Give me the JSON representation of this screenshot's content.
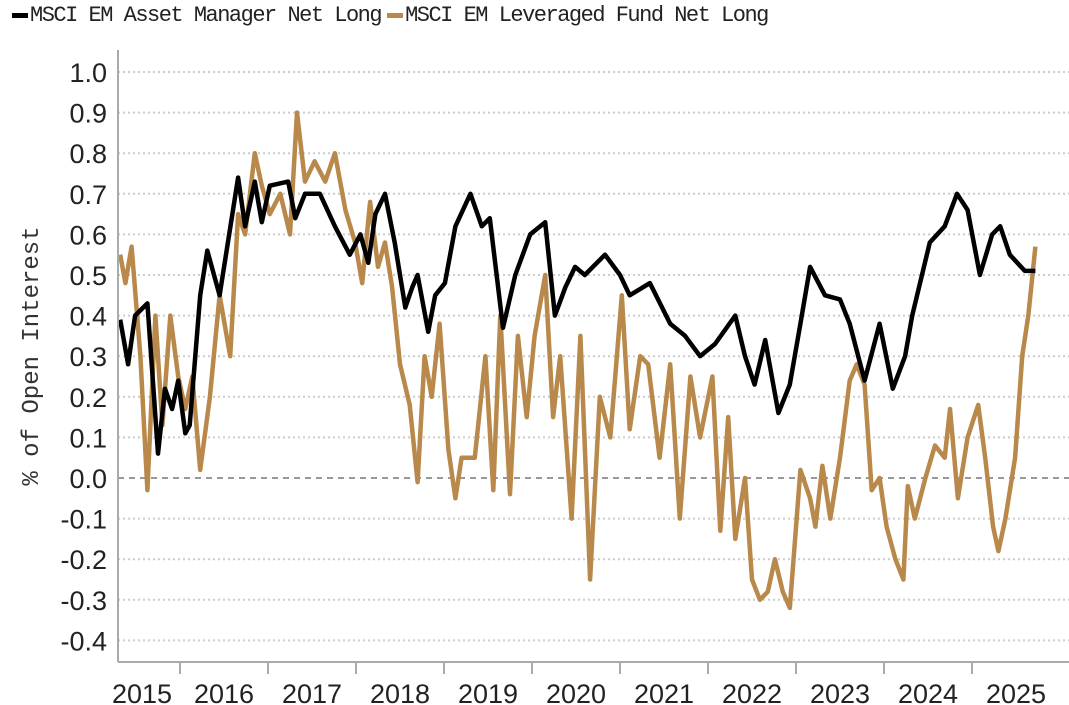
{
  "chart_data": {
    "type": "line",
    "title": "",
    "xlabel": "",
    "ylabel": "% of Open Interest",
    "ylim": [
      -0.4,
      1.0
    ],
    "yticks": [
      "1.0",
      "0.9",
      "0.8",
      "0.7",
      "0.6",
      "0.5",
      "0.4",
      "0.3",
      "0.2",
      "0.1",
      "0.0",
      "-0.1",
      "-0.2",
      "-0.3",
      "-0.4"
    ],
    "ytick_values": [
      1.0,
      0.9,
      0.8,
      0.7,
      0.6,
      0.5,
      0.4,
      0.3,
      0.2,
      0.1,
      0.0,
      -0.1,
      -0.2,
      -0.3,
      -0.4
    ],
    "xticks": [
      "2015",
      "2016",
      "2017",
      "2018",
      "2019",
      "2020",
      "2021",
      "2022",
      "2023",
      "2024",
      "2025"
    ],
    "xlim": [
      2015.3,
      2026.0
    ],
    "grid": true,
    "legend_placement": "top-left",
    "series": [
      {
        "name": "MSCI EM Asset Manager Net Long",
        "color": "#000000",
        "points": [
          [
            2015.32,
            0.39
          ],
          [
            2015.41,
            0.28
          ],
          [
            2015.49,
            0.4
          ],
          [
            2015.63,
            0.43
          ],
          [
            2015.75,
            0.06
          ],
          [
            2015.83,
            0.22
          ],
          [
            2015.91,
            0.17
          ],
          [
            2015.98,
            0.24
          ],
          [
            2016.06,
            0.11
          ],
          [
            2016.11,
            0.13
          ],
          [
            2016.23,
            0.45
          ],
          [
            2016.31,
            0.56
          ],
          [
            2016.45,
            0.45
          ],
          [
            2016.66,
            0.74
          ],
          [
            2016.74,
            0.62
          ],
          [
            2016.85,
            0.73
          ],
          [
            2016.93,
            0.63
          ],
          [
            2017.02,
            0.72
          ],
          [
            2017.23,
            0.73
          ],
          [
            2017.31,
            0.64
          ],
          [
            2017.42,
            0.7
          ],
          [
            2017.59,
            0.7
          ],
          [
            2017.76,
            0.62
          ],
          [
            2017.93,
            0.55
          ],
          [
            2018.05,
            0.6
          ],
          [
            2018.14,
            0.53
          ],
          [
            2018.22,
            0.65
          ],
          [
            2018.33,
            0.7
          ],
          [
            2018.44,
            0.58
          ],
          [
            2018.56,
            0.42
          ],
          [
            2018.64,
            0.47
          ],
          [
            2018.7,
            0.5
          ],
          [
            2018.82,
            0.36
          ],
          [
            2018.9,
            0.45
          ],
          [
            2019.01,
            0.48
          ],
          [
            2019.13,
            0.62
          ],
          [
            2019.3,
            0.7
          ],
          [
            2019.43,
            0.62
          ],
          [
            2019.52,
            0.64
          ],
          [
            2019.67,
            0.37
          ],
          [
            2019.81,
            0.5
          ],
          [
            2019.98,
            0.6
          ],
          [
            2020.15,
            0.63
          ],
          [
            2020.26,
            0.4
          ],
          [
            2020.38,
            0.47
          ],
          [
            2020.49,
            0.52
          ],
          [
            2020.6,
            0.5
          ],
          [
            2020.83,
            0.55
          ],
          [
            2021.0,
            0.5
          ],
          [
            2021.11,
            0.45
          ],
          [
            2021.34,
            0.48
          ],
          [
            2021.57,
            0.38
          ],
          [
            2021.74,
            0.35
          ],
          [
            2021.91,
            0.3
          ],
          [
            2022.08,
            0.33
          ],
          [
            2022.31,
            0.4
          ],
          [
            2022.42,
            0.3
          ],
          [
            2022.53,
            0.23
          ],
          [
            2022.65,
            0.34
          ],
          [
            2022.8,
            0.16
          ],
          [
            2022.93,
            0.23
          ],
          [
            2023.05,
            0.38
          ],
          [
            2023.16,
            0.52
          ],
          [
            2023.33,
            0.45
          ],
          [
            2023.5,
            0.44
          ],
          [
            2023.61,
            0.38
          ],
          [
            2023.78,
            0.24
          ],
          [
            2023.95,
            0.38
          ],
          [
            2024.1,
            0.22
          ],
          [
            2024.24,
            0.3
          ],
          [
            2024.32,
            0.4
          ],
          [
            2024.52,
            0.58
          ],
          [
            2024.69,
            0.62
          ],
          [
            2024.83,
            0.7
          ],
          [
            2024.95,
            0.66
          ],
          [
            2025.09,
            0.5
          ],
          [
            2025.23,
            0.6
          ],
          [
            2025.32,
            0.62
          ],
          [
            2025.43,
            0.55
          ],
          [
            2025.6,
            0.51
          ],
          [
            2025.72,
            0.51
          ]
        ]
      },
      {
        "name": "MSCI EM Leveraged Fund Net Long",
        "color": "#b8894a",
        "points": [
          [
            2015.32,
            0.55
          ],
          [
            2015.38,
            0.48
          ],
          [
            2015.45,
            0.57
          ],
          [
            2015.55,
            0.3
          ],
          [
            2015.63,
            -0.03
          ],
          [
            2015.72,
            0.4
          ],
          [
            2015.8,
            0.13
          ],
          [
            2015.89,
            0.4
          ],
          [
            2015.98,
            0.25
          ],
          [
            2016.06,
            0.17
          ],
          [
            2016.14,
            0.25
          ],
          [
            2016.23,
            0.02
          ],
          [
            2016.34,
            0.2
          ],
          [
            2016.45,
            0.45
          ],
          [
            2016.57,
            0.3
          ],
          [
            2016.66,
            0.65
          ],
          [
            2016.74,
            0.6
          ],
          [
            2016.85,
            0.8
          ],
          [
            2016.93,
            0.72
          ],
          [
            2017.02,
            0.65
          ],
          [
            2017.14,
            0.7
          ],
          [
            2017.25,
            0.6
          ],
          [
            2017.33,
            0.9
          ],
          [
            2017.42,
            0.73
          ],
          [
            2017.53,
            0.78
          ],
          [
            2017.65,
            0.73
          ],
          [
            2017.76,
            0.8
          ],
          [
            2017.88,
            0.66
          ],
          [
            2017.99,
            0.58
          ],
          [
            2018.07,
            0.48
          ],
          [
            2018.16,
            0.68
          ],
          [
            2018.25,
            0.52
          ],
          [
            2018.33,
            0.58
          ],
          [
            2018.41,
            0.47
          ],
          [
            2018.5,
            0.28
          ],
          [
            2018.61,
            0.18
          ],
          [
            2018.7,
            -0.01
          ],
          [
            2018.78,
            0.3
          ],
          [
            2018.86,
            0.2
          ],
          [
            2018.95,
            0.38
          ],
          [
            2019.05,
            0.07
          ],
          [
            2019.13,
            -0.05
          ],
          [
            2019.2,
            0.05
          ],
          [
            2019.35,
            0.05
          ],
          [
            2019.47,
            0.3
          ],
          [
            2019.56,
            -0.03
          ],
          [
            2019.64,
            0.4
          ],
          [
            2019.75,
            -0.04
          ],
          [
            2019.84,
            0.35
          ],
          [
            2019.94,
            0.15
          ],
          [
            2020.03,
            0.35
          ],
          [
            2020.15,
            0.5
          ],
          [
            2020.24,
            0.15
          ],
          [
            2020.32,
            0.3
          ],
          [
            2020.45,
            -0.1
          ],
          [
            2020.55,
            0.35
          ],
          [
            2020.66,
            -0.25
          ],
          [
            2020.77,
            0.2
          ],
          [
            2020.89,
            0.1
          ],
          [
            2021.02,
            0.45
          ],
          [
            2021.11,
            0.12
          ],
          [
            2021.23,
            0.3
          ],
          [
            2021.32,
            0.28
          ],
          [
            2021.45,
            0.05
          ],
          [
            2021.57,
            0.28
          ],
          [
            2021.68,
            -0.1
          ],
          [
            2021.8,
            0.25
          ],
          [
            2021.91,
            0.1
          ],
          [
            2022.05,
            0.25
          ],
          [
            2022.14,
            -0.13
          ],
          [
            2022.23,
            0.15
          ],
          [
            2022.31,
            -0.15
          ],
          [
            2022.42,
            0.0
          ],
          [
            2022.5,
            -0.25
          ],
          [
            2022.59,
            -0.3
          ],
          [
            2022.68,
            -0.28
          ],
          [
            2022.76,
            -0.2
          ],
          [
            2022.85,
            -0.28
          ],
          [
            2022.93,
            -0.32
          ],
          [
            2023.05,
            0.02
          ],
          [
            2023.16,
            -0.05
          ],
          [
            2023.22,
            -0.12
          ],
          [
            2023.3,
            0.03
          ],
          [
            2023.39,
            -0.1
          ],
          [
            2023.5,
            0.05
          ],
          [
            2023.61,
            0.24
          ],
          [
            2023.69,
            0.28
          ],
          [
            2023.78,
            0.23
          ],
          [
            2023.86,
            -0.03
          ],
          [
            2023.95,
            0.0
          ],
          [
            2024.03,
            -0.12
          ],
          [
            2024.13,
            -0.2
          ],
          [
            2024.22,
            -0.25
          ],
          [
            2024.27,
            -0.02
          ],
          [
            2024.35,
            -0.1
          ],
          [
            2024.47,
            0.0
          ],
          [
            2024.58,
            0.08
          ],
          [
            2024.69,
            0.05
          ],
          [
            2024.75,
            0.17
          ],
          [
            2024.84,
            -0.05
          ],
          [
            2024.95,
            0.1
          ],
          [
            2025.07,
            0.18
          ],
          [
            2025.15,
            0.05
          ],
          [
            2025.24,
            -0.12
          ],
          [
            2025.3,
            -0.18
          ],
          [
            2025.38,
            -0.1
          ],
          [
            2025.49,
            0.05
          ],
          [
            2025.57,
            0.3
          ],
          [
            2025.64,
            0.4
          ],
          [
            2025.72,
            0.57
          ]
        ]
      }
    ]
  }
}
